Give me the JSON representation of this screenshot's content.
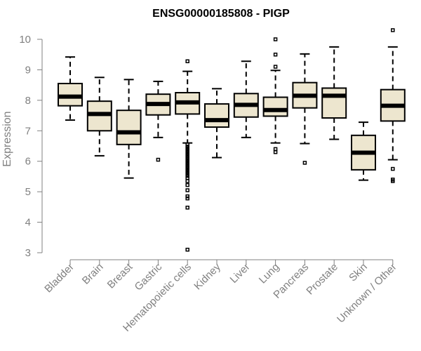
{
  "chart_data": {
    "type": "box",
    "title": "ENSG00000185808 - PIGP",
    "xlabel": "",
    "ylabel": "Expression",
    "ylim": [
      3,
      10
    ],
    "yticks": [
      3,
      4,
      5,
      6,
      7,
      8,
      9,
      10
    ],
    "grid": false,
    "colors": {
      "box_fill": "#ede6cf",
      "box_stroke": "#000000",
      "axis": "#808080",
      "text_muted": "#808080"
    },
    "categories": [
      "Bladder",
      "Brain",
      "Breast",
      "Gastric",
      "Hematopoietic cells",
      "Kidney",
      "Liver",
      "Lung",
      "Pancreas",
      "Prostate",
      "Skin",
      "Unknown / Other"
    ],
    "boxes": [
      {
        "min": 7.35,
        "q1": 7.82,
        "median": 8.12,
        "q3": 8.55,
        "max": 9.42,
        "outliers": []
      },
      {
        "min": 6.18,
        "q1": 7.0,
        "median": 7.55,
        "q3": 7.97,
        "max": 8.75,
        "outliers": []
      },
      {
        "min": 5.45,
        "q1": 6.55,
        "median": 6.95,
        "q3": 7.67,
        "max": 8.68,
        "outliers": []
      },
      {
        "min": 6.78,
        "q1": 7.52,
        "median": 7.88,
        "q3": 8.2,
        "max": 8.62,
        "outliers": [
          6.05
        ]
      },
      {
        "min": 6.6,
        "q1": 7.55,
        "median": 7.93,
        "q3": 8.25,
        "max": 8.95,
        "outliers": [
          9.28,
          6.55,
          6.48,
          6.42,
          6.36,
          6.3,
          6.24,
          6.18,
          6.12,
          6.06,
          6.0,
          5.94,
          5.88,
          5.82,
          5.76,
          5.7,
          5.64,
          5.58,
          5.52,
          5.45,
          5.35,
          5.22,
          5.05,
          4.85,
          4.78,
          4.48,
          3.1
        ]
      },
      {
        "min": 6.12,
        "q1": 7.12,
        "median": 7.35,
        "q3": 7.88,
        "max": 8.38,
        "outliers": []
      },
      {
        "min": 6.78,
        "q1": 7.45,
        "median": 7.85,
        "q3": 8.22,
        "max": 9.28,
        "outliers": []
      },
      {
        "min": 6.6,
        "q1": 7.48,
        "median": 7.68,
        "q3": 8.1,
        "max": 8.98,
        "outliers": [
          10.0,
          9.5,
          9.1,
          6.4,
          6.3
        ]
      },
      {
        "min": 6.58,
        "q1": 7.75,
        "median": 8.15,
        "q3": 8.58,
        "max": 9.52,
        "outliers": [
          5.95
        ]
      },
      {
        "min": 6.72,
        "q1": 7.42,
        "median": 8.15,
        "q3": 8.4,
        "max": 9.75,
        "outliers": []
      },
      {
        "min": 5.38,
        "q1": 5.72,
        "median": 6.28,
        "q3": 6.85,
        "max": 7.28,
        "outliers": []
      },
      {
        "min": 6.05,
        "q1": 7.32,
        "median": 7.82,
        "q3": 8.35,
        "max": 9.75,
        "outliers": [
          10.3,
          5.75,
          5.4,
          5.35
        ]
      }
    ]
  }
}
